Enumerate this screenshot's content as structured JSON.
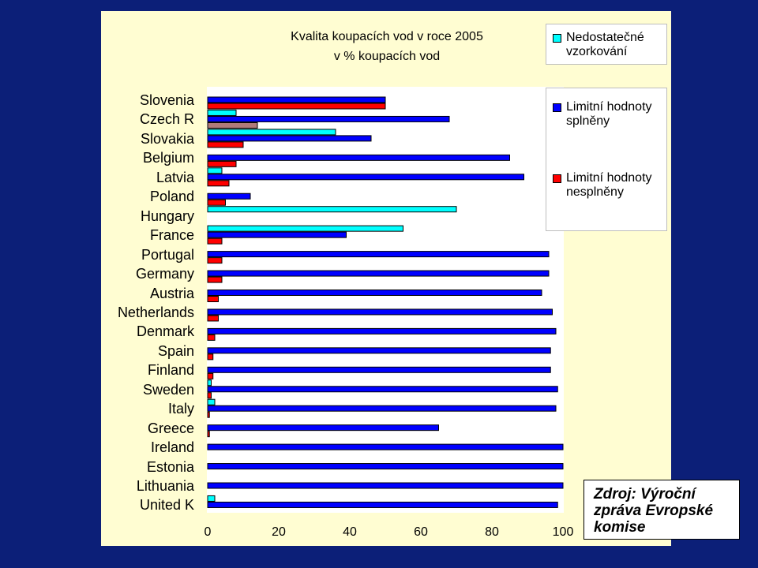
{
  "chart_data": {
    "type": "bar",
    "orientation": "horizontal",
    "title": "Kvalita koupacích vod v roce 2005",
    "subtitle": "v % koupacích vod",
    "categories": [
      "Slovenia",
      "Czech R",
      "Slovakia",
      "Belgium",
      "Latvia",
      "Poland",
      "Hungary",
      "France",
      "Portugal",
      "Germany",
      "Austria",
      "Netherlands",
      "Denmark",
      "Spain",
      "Finland",
      "Sweden",
      "Italy",
      "Greece",
      "Ireland",
      "Estonia",
      "Lithuania",
      "United K"
    ],
    "series": [
      {
        "name": "Nedostatečné vzorkování",
        "color": "#00ffff",
        "values": [
          0,
          8,
          36,
          0,
          4,
          0,
          70,
          55,
          0,
          0,
          0,
          0,
          0,
          0,
          0,
          1,
          2,
          0,
          0,
          0,
          0,
          2
        ]
      },
      {
        "name": "Limitní hodnoty splněny",
        "color": "#0000ff",
        "values": [
          50,
          68,
          46,
          85,
          89,
          12,
          0,
          39,
          96,
          96,
          94,
          97,
          98,
          96.5,
          96.5,
          98.5,
          98,
          65,
          100,
          100,
          100,
          98.5
        ]
      },
      {
        "name": "Limitní hodnoty nesplněny",
        "color": "#ff0000",
        "values": [
          50,
          14,
          10,
          8,
          6,
          5,
          0,
          4,
          4,
          4,
          3,
          3,
          2,
          1.5,
          1.5,
          1,
          0.5,
          0.5,
          0,
          0,
          0,
          0
        ]
      }
    ],
    "special_bar": {
      "category": "Czech R",
      "series": "Limitní hodnoty nesplněny",
      "color": "#b07a7a"
    },
    "xlim": [
      0,
      100
    ],
    "xticks": [
      "0",
      "20",
      "40",
      "60",
      "80",
      "100"
    ],
    "grid": false,
    "legend_position": "right"
  },
  "source": "Zdroj: Výroční zpráva Evropské komise",
  "colors": {
    "background": "#0c1f78",
    "panel": "#fffdd2"
  }
}
